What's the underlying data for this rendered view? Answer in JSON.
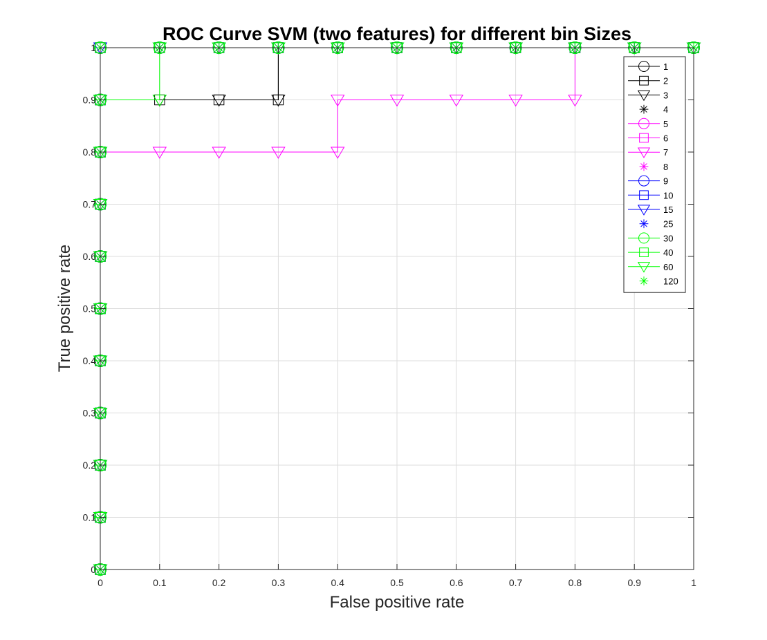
{
  "chart_data": {
    "type": "line",
    "title": "ROC Curve SVM (two features) for different bin Sizes",
    "xlabel": "False positive rate",
    "ylabel": "True positive rate",
    "xlim": [
      0,
      1
    ],
    "ylim": [
      0,
      1
    ],
    "grid": true,
    "legend_position": "top-right",
    "x_ticks": [
      "0",
      "0.1",
      "0.2",
      "0.3",
      "0.4",
      "0.5",
      "0.6",
      "0.7",
      "0.8",
      "0.9",
      "1"
    ],
    "y_ticks": [
      "0",
      "0.1",
      "0.2",
      "0.3",
      "0.4",
      "0.5",
      "0.6",
      "0.7",
      "0.8",
      "0.9",
      "1"
    ],
    "series": [
      {
        "name": "1",
        "color": "#000000",
        "marker": "circle",
        "x": [
          0,
          0,
          0,
          0,
          0,
          0,
          0,
          0,
          0,
          0,
          0,
          0.1,
          0.2,
          0.3,
          0.4,
          0.5,
          0.6,
          0.7,
          0.8,
          0.9,
          1
        ],
        "y": [
          0,
          0.1,
          0.2,
          0.3,
          0.4,
          0.5,
          0.6,
          0.7,
          0.8,
          0.9,
          1,
          1,
          1,
          1,
          1,
          1,
          1,
          1,
          1,
          1,
          1
        ]
      },
      {
        "name": "2",
        "color": "#000000",
        "marker": "square",
        "x": [
          0,
          0,
          0,
          0,
          0,
          0,
          0,
          0,
          0,
          0,
          0.1,
          0.2,
          0.3,
          0.3,
          0.4,
          0.5,
          0.6,
          0.7,
          0.8,
          0.9,
          1
        ],
        "y": [
          0,
          0.1,
          0.2,
          0.3,
          0.4,
          0.5,
          0.6,
          0.7,
          0.8,
          0.9,
          0.9,
          0.9,
          0.9,
          1,
          1,
          1,
          1,
          1,
          1,
          1,
          1
        ]
      },
      {
        "name": "3",
        "color": "#000000",
        "marker": "triangle",
        "x": [
          0,
          0,
          0,
          0,
          0,
          0,
          0,
          0,
          0,
          0,
          0.1,
          0.2,
          0.3,
          0.3,
          0.4,
          0.5,
          0.6,
          0.7,
          0.8,
          0.9,
          1
        ],
        "y": [
          0,
          0.1,
          0.2,
          0.3,
          0.4,
          0.5,
          0.6,
          0.7,
          0.8,
          0.9,
          0.9,
          0.9,
          0.9,
          1,
          1,
          1,
          1,
          1,
          1,
          1,
          1
        ]
      },
      {
        "name": "4",
        "color": "#000000",
        "marker": "star",
        "x": [
          0,
          0,
          0,
          0,
          0,
          0,
          0,
          0,
          0,
          0,
          0,
          0.1,
          0.2,
          0.3,
          0.4,
          0.5,
          0.6,
          0.7,
          0.8,
          0.9,
          1
        ],
        "y": [
          0,
          0.1,
          0.2,
          0.3,
          0.4,
          0.5,
          0.6,
          0.7,
          0.8,
          0.9,
          1,
          1,
          1,
          1,
          1,
          1,
          1,
          1,
          1,
          1,
          1
        ]
      },
      {
        "name": "5",
        "color": "#ff00ff",
        "marker": "circle",
        "x": [
          0,
          0,
          0,
          0,
          0,
          0,
          0,
          0,
          0,
          0,
          0,
          0.1,
          0.2,
          0.3,
          0.4,
          0.5,
          0.6,
          0.7,
          0.8,
          0.9,
          1
        ],
        "y": [
          0,
          0.1,
          0.2,
          0.3,
          0.4,
          0.5,
          0.6,
          0.7,
          0.8,
          0.9,
          1,
          1,
          1,
          1,
          1,
          1,
          1,
          1,
          1,
          1,
          1
        ]
      },
      {
        "name": "6",
        "color": "#ff00ff",
        "marker": "square",
        "x": [
          0,
          0,
          0,
          0,
          0,
          0,
          0,
          0,
          0,
          0,
          0,
          0.1,
          0.2,
          0.3,
          0.4,
          0.5,
          0.6,
          0.7,
          0.8,
          0.9,
          1
        ],
        "y": [
          0,
          0.1,
          0.2,
          0.3,
          0.4,
          0.5,
          0.6,
          0.7,
          0.8,
          0.9,
          1,
          1,
          1,
          1,
          1,
          1,
          1,
          1,
          1,
          1,
          1
        ]
      },
      {
        "name": "7",
        "color": "#ff00ff",
        "marker": "triangle",
        "x": [
          0,
          0,
          0,
          0,
          0,
          0,
          0,
          0,
          0,
          0.1,
          0.2,
          0.3,
          0.4,
          0.4,
          0.5,
          0.6,
          0.7,
          0.8,
          0.8,
          0.9,
          1
        ],
        "y": [
          0,
          0.1,
          0.2,
          0.3,
          0.4,
          0.5,
          0.6,
          0.7,
          0.8,
          0.8,
          0.8,
          0.8,
          0.8,
          0.9,
          0.9,
          0.9,
          0.9,
          0.9,
          1,
          1,
          1
        ]
      },
      {
        "name": "8",
        "color": "#ff00ff",
        "marker": "star",
        "x": [
          0,
          0,
          0,
          0,
          0,
          0,
          0,
          0,
          0,
          0,
          0,
          0.1,
          0.2,
          0.3,
          0.4,
          0.5,
          0.6,
          0.7,
          0.8,
          0.9,
          1
        ],
        "y": [
          0,
          0.1,
          0.2,
          0.3,
          0.4,
          0.5,
          0.6,
          0.7,
          0.8,
          0.9,
          1,
          1,
          1,
          1,
          1,
          1,
          1,
          1,
          1,
          1,
          1
        ]
      },
      {
        "name": "9",
        "color": "#0000ff",
        "marker": "circle",
        "x": [
          0,
          0,
          0,
          0,
          0,
          0,
          0,
          0,
          0,
          0,
          0,
          0.1,
          0.2,
          0.3,
          0.4,
          0.5,
          0.6,
          0.7,
          0.8,
          0.9,
          1
        ],
        "y": [
          0,
          0.1,
          0.2,
          0.3,
          0.4,
          0.5,
          0.6,
          0.7,
          0.8,
          0.9,
          1,
          1,
          1,
          1,
          1,
          1,
          1,
          1,
          1,
          1,
          1
        ]
      },
      {
        "name": "10",
        "color": "#0000ff",
        "marker": "square",
        "x": [
          0,
          0,
          0,
          0,
          0,
          0,
          0,
          0,
          0,
          0,
          0,
          0.1,
          0.2,
          0.3,
          0.4,
          0.5,
          0.6,
          0.7,
          0.8,
          0.9,
          1
        ],
        "y": [
          0,
          0.1,
          0.2,
          0.3,
          0.4,
          0.5,
          0.6,
          0.7,
          0.8,
          0.9,
          1,
          1,
          1,
          1,
          1,
          1,
          1,
          1,
          1,
          1,
          1
        ]
      },
      {
        "name": "15",
        "color": "#0000ff",
        "marker": "triangle",
        "x": [
          0,
          0,
          0,
          0,
          0,
          0,
          0,
          0,
          0,
          0,
          0,
          0.1,
          0.2,
          0.3,
          0.4,
          0.5,
          0.6,
          0.7,
          0.8,
          0.9,
          1
        ],
        "y": [
          0,
          0.1,
          0.2,
          0.3,
          0.4,
          0.5,
          0.6,
          0.7,
          0.8,
          0.9,
          1,
          1,
          1,
          1,
          1,
          1,
          1,
          1,
          1,
          1,
          1
        ]
      },
      {
        "name": "25",
        "color": "#0000ff",
        "marker": "star",
        "x": [
          0,
          0,
          0,
          0,
          0,
          0,
          0,
          0,
          0,
          0,
          0,
          0.1,
          0.2,
          0.3,
          0.4,
          0.5,
          0.6,
          0.7,
          0.8,
          0.9,
          1
        ],
        "y": [
          0,
          0.1,
          0.2,
          0.3,
          0.4,
          0.5,
          0.6,
          0.7,
          0.8,
          0.9,
          1,
          1,
          1,
          1,
          1,
          1,
          1,
          1,
          1,
          1,
          1
        ]
      },
      {
        "name": "30",
        "color": "#00ff00",
        "marker": "circle",
        "x": [
          0,
          0,
          0,
          0,
          0,
          0,
          0,
          0,
          0,
          0,
          0,
          0.1,
          0.2,
          0.3,
          0.4,
          0.5,
          0.6,
          0.7,
          0.8,
          0.9,
          1
        ],
        "y": [
          0,
          0.1,
          0.2,
          0.3,
          0.4,
          0.5,
          0.6,
          0.7,
          0.8,
          0.9,
          1,
          1,
          1,
          1,
          1,
          1,
          1,
          1,
          1,
          1,
          1
        ]
      },
      {
        "name": "40",
        "color": "#00ff00",
        "marker": "square",
        "x": [
          0,
          0,
          0,
          0,
          0,
          0,
          0,
          0,
          0,
          0,
          0,
          0.1,
          0.2,
          0.3,
          0.4,
          0.5,
          0.6,
          0.7,
          0.8,
          0.9,
          1
        ],
        "y": [
          0,
          0.1,
          0.2,
          0.3,
          0.4,
          0.5,
          0.6,
          0.7,
          0.8,
          0.9,
          1,
          1,
          1,
          1,
          1,
          1,
          1,
          1,
          1,
          1,
          1
        ]
      },
      {
        "name": "60",
        "color": "#00ff00",
        "marker": "triangle",
        "x": [
          0,
          0,
          0,
          0,
          0,
          0,
          0,
          0,
          0,
          0,
          0.1,
          0.1,
          0.2,
          0.3,
          0.4,
          0.5,
          0.6,
          0.7,
          0.8,
          0.9,
          1
        ],
        "y": [
          0,
          0.1,
          0.2,
          0.3,
          0.4,
          0.5,
          0.6,
          0.7,
          0.8,
          0.9,
          0.9,
          1,
          1,
          1,
          1,
          1,
          1,
          1,
          1,
          1,
          1
        ]
      },
      {
        "name": "120",
        "color": "#00ff00",
        "marker": "star",
        "x": [
          0,
          0,
          0,
          0,
          0,
          0,
          0,
          0,
          0,
          0,
          0,
          0.1,
          0.2,
          0.3,
          0.4,
          0.5,
          0.6,
          0.7,
          0.8,
          0.9,
          1
        ],
        "y": [
          0,
          0.1,
          0.2,
          0.3,
          0.4,
          0.5,
          0.6,
          0.7,
          0.8,
          0.9,
          1,
          1,
          1,
          1,
          1,
          1,
          1,
          1,
          1,
          1,
          1
        ]
      }
    ]
  }
}
